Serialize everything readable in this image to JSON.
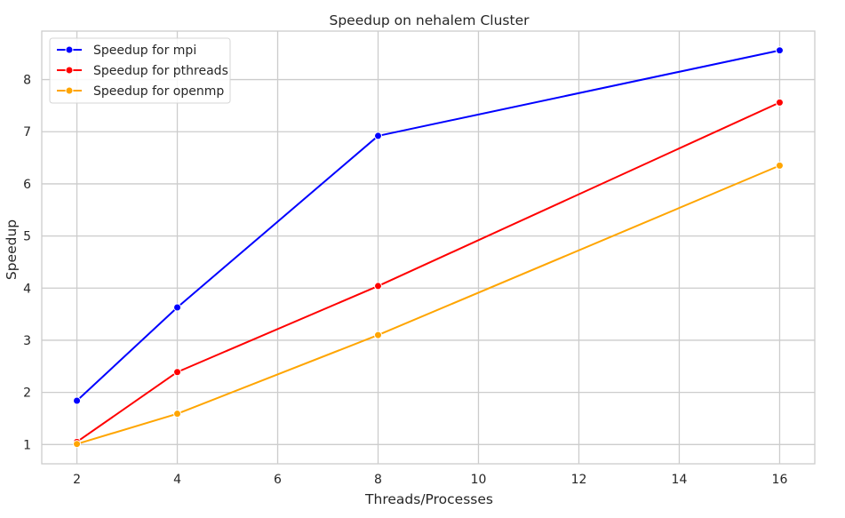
{
  "chart_data": {
    "type": "line",
    "title": "Speedup on nehalem Cluster",
    "xlabel": "Threads/Processes",
    "ylabel": "Speedup",
    "x": [
      2,
      4,
      8,
      16
    ],
    "xlim": [
      1.3,
      16.7
    ],
    "ylim": [
      0.63,
      8.93
    ],
    "xticks": [
      2,
      4,
      6,
      8,
      10,
      12,
      14,
      16
    ],
    "yticks": [
      1,
      2,
      3,
      4,
      5,
      6,
      7,
      8
    ],
    "grid": true,
    "legend_position": "top-left",
    "series": [
      {
        "name": "Speedup for mpi",
        "color": "#0000ff",
        "values": [
          1.84,
          3.63,
          6.92,
          8.56
        ]
      },
      {
        "name": "Speedup for pthreads",
        "color": "#ff0000",
        "values": [
          1.05,
          2.39,
          4.04,
          7.56
        ]
      },
      {
        "name": "Speedup for openmp",
        "color": "#ffa500",
        "values": [
          1.01,
          1.59,
          3.1,
          6.35
        ]
      }
    ]
  }
}
